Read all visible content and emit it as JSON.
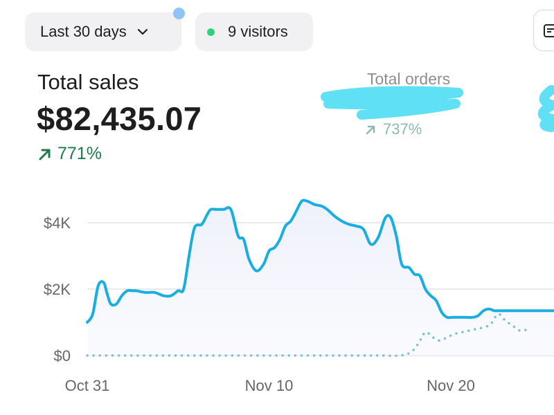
{
  "header": {
    "range_label": "Last 30 days",
    "range_icon": "chevron-down-icon",
    "visitors_label": "9 visitors",
    "live_color": "#2fd27a"
  },
  "sales": {
    "title": "Total sales",
    "value": "$82,435.07",
    "change": "771%",
    "change_color": "#1f7a4d"
  },
  "orders": {
    "title": "Total orders",
    "change": "737%"
  },
  "chart_data": {
    "type": "line",
    "ylim": [
      0,
      4800
    ],
    "yticks": [
      {
        "value": 0,
        "label": "$0"
      },
      {
        "value": 2000,
        "label": "$2K"
      },
      {
        "value": 4000,
        "label": "$4K"
      }
    ],
    "xticks": [
      {
        "x": 0,
        "label": "Oct 31"
      },
      {
        "x": 10,
        "label": "Nov 10"
      },
      {
        "x": 20,
        "label": "Nov 20"
      }
    ],
    "grid": true,
    "series": [
      {
        "style": "solid",
        "color": "#1aaee0",
        "fill": true,
        "x": [
          0,
          0.3,
          0.6,
          0.9,
          1.1,
          1.3,
          1.6,
          1.9,
          2.2,
          2.5,
          2.7,
          3.2,
          3.7,
          4.2,
          4.6,
          5.0,
          5.3,
          5.6,
          5.9,
          6.3,
          6.6,
          6.8,
          7.1,
          7.5,
          7.9,
          8.3,
          8.6,
          8.9,
          9.3,
          9.7,
          10.0,
          10.3,
          10.6,
          10.9,
          11.2,
          11.5,
          11.8,
          12.1,
          12.5,
          12.9,
          13.2,
          13.6,
          14.0,
          14.4,
          14.8,
          15.2,
          15.6,
          16.0,
          16.4,
          16.7,
          17.0,
          17.3,
          17.7,
          18.0,
          18.3,
          18.6,
          18.9,
          19.2,
          19.5,
          19.8,
          20.1,
          20.4,
          20.8,
          21.2,
          21.5,
          21.8,
          22.1,
          22.4,
          22.7,
          23.0,
          23.3,
          23.6,
          23.9,
          24.2,
          24.5,
          24.8,
          25.1,
          25.4,
          25.7,
          26.0,
          26.3
        ],
        "y": [
          1000,
          1250,
          2100,
          2200,
          1850,
          1550,
          1550,
          1800,
          1950,
          1950,
          1950,
          1900,
          1900,
          1800,
          1800,
          1950,
          2000,
          3000,
          3850,
          3950,
          4250,
          4400,
          4400,
          4400,
          4400,
          3600,
          3500,
          2900,
          2550,
          2750,
          3150,
          3250,
          3500,
          3900,
          4050,
          4350,
          4650,
          4650,
          4550,
          4500,
          4400,
          4200,
          4050,
          3950,
          3900,
          3800,
          3350,
          3550,
          4150,
          4150,
          3600,
          2750,
          2650,
          2450,
          2400,
          2000,
          1800,
          1650,
          1300,
          1150,
          1150,
          1150,
          1150,
          1150,
          1200,
          1350,
          1400,
          1350,
          1350,
          1350,
          1350,
          1350,
          1350,
          1350,
          1350,
          1350,
          1350,
          1350,
          1350,
          1350,
          1350
        ]
      },
      {
        "style": "dotted",
        "color": "#7dbfd8",
        "fill": false,
        "x": [
          0,
          2,
          4,
          6,
          8,
          10,
          12,
          14,
          16,
          17.2,
          17.8,
          18.2,
          18.6,
          19.0,
          19.4,
          19.8,
          20.2,
          20.6,
          21.0,
          21.4,
          21.8,
          22.2,
          22.6,
          23.0,
          23.4,
          23.8,
          24.2
        ],
        "y": [
          0,
          0,
          0,
          0,
          0,
          0,
          0,
          0,
          0,
          0,
          100,
          350,
          700,
          550,
          450,
          550,
          650,
          700,
          750,
          800,
          850,
          950,
          1250,
          1050,
          900,
          750,
          780
        ]
      }
    ]
  }
}
